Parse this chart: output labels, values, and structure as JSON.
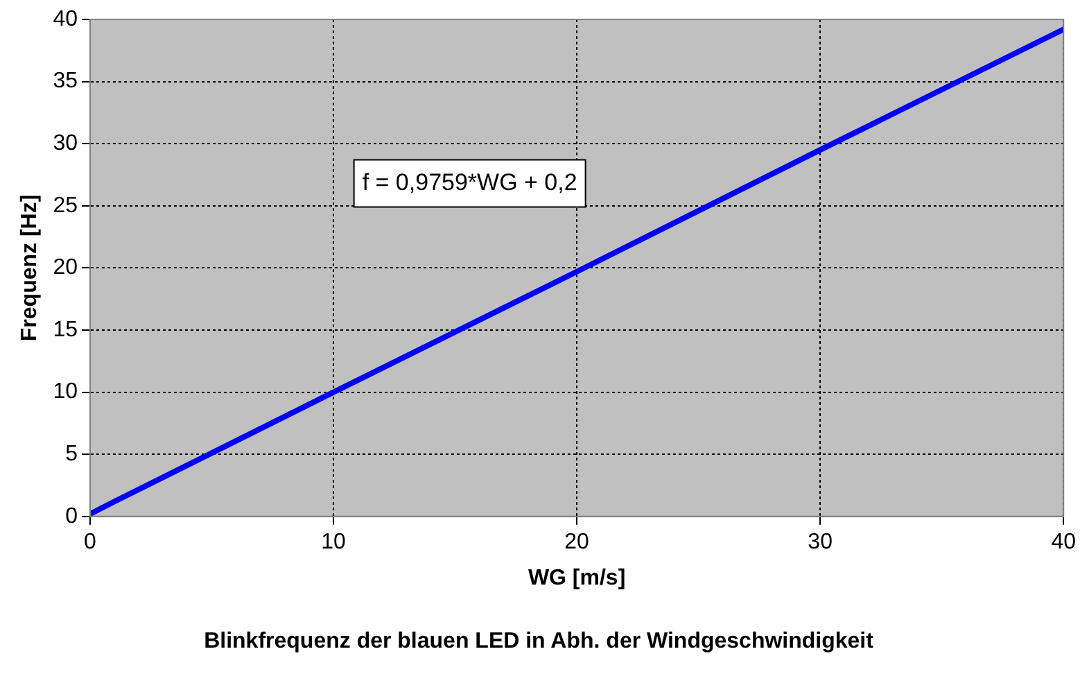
{
  "chart_data": {
    "type": "line",
    "title": "Blinkfrequenz der blauen LED in Abh. der Windgeschwindigkeit",
    "xlabel": "WG [m/s]",
    "ylabel": "Frequenz [Hz]",
    "x": [
      0,
      1,
      10,
      20,
      30,
      40
    ],
    "series": [
      {
        "color": "#0000ff",
        "values": [
          0.2,
          1.2,
          10,
          19.7,
          29.5,
          39.2
        ]
      }
    ],
    "xlim": [
      0,
      40
    ],
    "xticks": [
      0,
      10,
      20,
      30,
      40
    ],
    "ylim": [
      0,
      40
    ],
    "yticks": [
      0,
      5,
      10,
      15,
      20,
      25,
      30,
      35,
      40
    ],
    "grid": true,
    "legend": false,
    "marker": "none",
    "line_style": "solid",
    "annotations": [
      "f = 0,9759*WG + 0,2"
    ]
  }
}
